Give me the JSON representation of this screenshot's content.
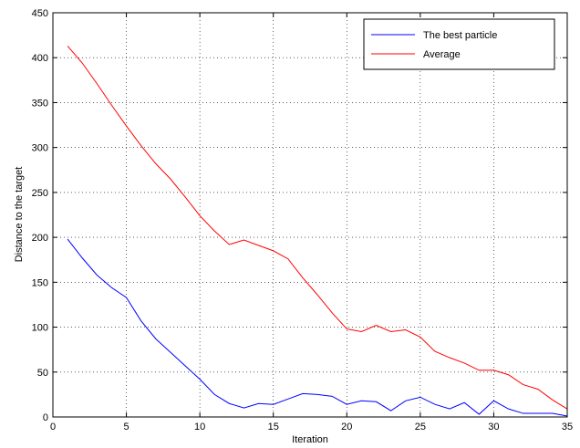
{
  "chart_data": {
    "type": "line",
    "xlabel": "Iteration",
    "ylabel": "Distance to the target",
    "xlim": [
      0,
      35
    ],
    "ylim": [
      0,
      450
    ],
    "xticks": [
      0,
      5,
      10,
      15,
      20,
      25,
      30,
      35
    ],
    "yticks": [
      0,
      50,
      100,
      150,
      200,
      250,
      300,
      350,
      400,
      450
    ],
    "grid": true,
    "legend_position": "top-right",
    "x": [
      1,
      2,
      3,
      4,
      5,
      6,
      7,
      8,
      9,
      10,
      11,
      12,
      13,
      14,
      15,
      16,
      17,
      18,
      19,
      20,
      21,
      22,
      23,
      24,
      25,
      26,
      27,
      28,
      29,
      30,
      31,
      32,
      33,
      34,
      35
    ],
    "series": [
      {
        "name": "The best particle",
        "color": "#0000ff",
        "values": [
          198,
          177,
          158,
          144,
          133,
          107,
          87,
          72,
          57,
          42,
          25,
          15,
          10,
          15,
          14,
          20,
          26,
          25,
          23,
          14,
          18,
          17,
          7,
          18,
          22,
          14,
          9,
          16,
          3,
          18,
          9,
          4,
          4,
          4,
          1
        ]
      },
      {
        "name": "Average",
        "color": "#ff0000",
        "values": [
          413,
          394,
          371,
          347,
          324,
          302,
          282,
          265,
          245,
          224,
          207,
          192,
          197,
          191,
          185,
          176,
          155,
          136,
          116,
          98,
          95,
          102,
          95,
          97,
          89,
          73,
          66,
          60,
          52,
          52,
          47,
          36,
          31,
          19,
          9
        ]
      }
    ]
  }
}
